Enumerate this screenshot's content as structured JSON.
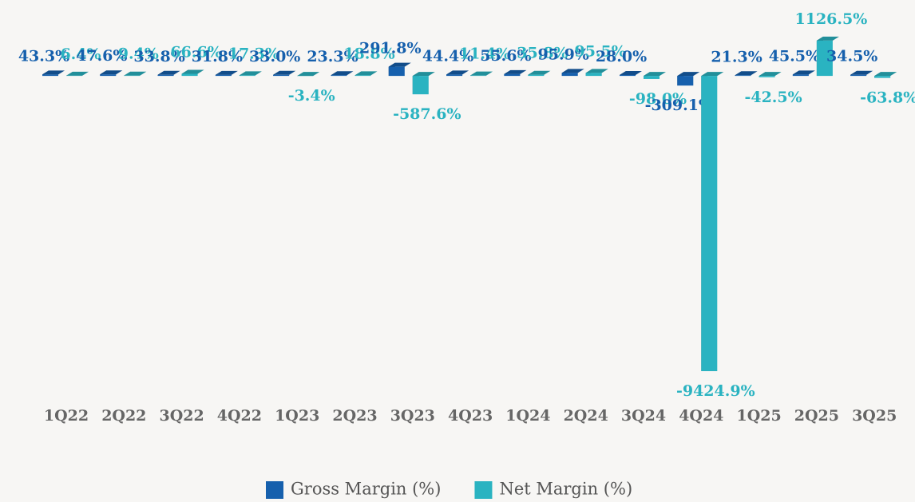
{
  "chart_data": {
    "type": "bar3d",
    "categories": [
      "1Q22",
      "2Q22",
      "3Q22",
      "4Q22",
      "1Q23",
      "2Q23",
      "3Q23",
      "4Q23",
      "1Q24",
      "2Q24",
      "3Q24",
      "4Q24",
      "1Q25",
      "2Q25",
      "3Q25"
    ],
    "series": [
      {
        "name": "Gross Margin (%)",
        "color": "#1660ad",
        "values": [
          43.3,
          47.6,
          33.8,
          31.8,
          33.0,
          23.3,
          291.8,
          44.4,
          55.6,
          95.9,
          28.0,
          -309.1,
          21.3,
          45.5,
          34.5
        ],
        "value_labels": [
          "43.3%",
          "47.6%",
          "33.8%",
          "31.8%",
          "33.0%",
          "23.3%",
          "291.8%",
          "44.4%",
          "55.6%",
          "95.9%",
          "28.0%",
          "-309.1%",
          "21.3%",
          "45.5%",
          "34.5%"
        ]
      },
      {
        "name": "Net Margin (%)",
        "color": "#2ab3c1",
        "values": [
          6.4,
          9.4,
          66.6,
          17.3,
          -3.4,
          18.8,
          -587.6,
          11.4,
          35.8,
          95.5,
          -98.0,
          -9424.9,
          -42.5,
          1126.5,
          -63.8
        ],
        "value_labels": [
          "6.4%",
          "9.4%",
          "66.6%",
          "17.3%",
          "-3.4%",
          "18.8%",
          "-587.6%",
          "11.4%",
          "35.8%",
          "95.5%",
          "-98.0%",
          "-9424.9%",
          "-42.5%",
          "1126.5%",
          "-63.8%"
        ]
      }
    ],
    "ylim": [
      -9500,
      1200
    ],
    "legend": "bottom"
  }
}
